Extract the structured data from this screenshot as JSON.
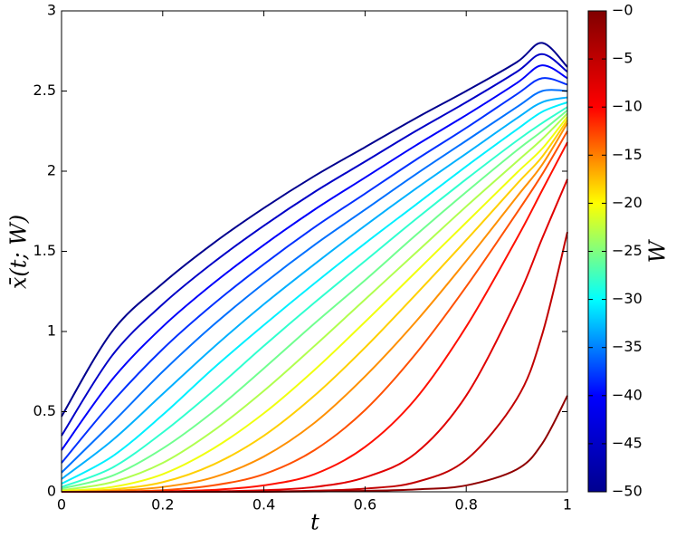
{
  "chart_data": {
    "type": "line",
    "x_label": "t",
    "y_label": "x̄(t; W)",
    "xlim": [
      0,
      1
    ],
    "ylim": [
      0,
      3
    ],
    "xticks": [
      0,
      0.2,
      0.4,
      0.6,
      0.8,
      1
    ],
    "yticks": [
      0,
      0.5,
      1,
      1.5,
      2,
      2.5,
      3
    ],
    "x": [
      0,
      0.1,
      0.2,
      0.3,
      0.4,
      0.5,
      0.6,
      0.7,
      0.8,
      0.9,
      0.95,
      1
    ],
    "series": [
      {
        "color": "#00008f",
        "values": [
          0.47,
          1.0,
          1.3,
          1.55,
          1.77,
          1.97,
          2.15,
          2.33,
          2.5,
          2.68,
          2.8,
          2.65
        ]
      },
      {
        "color": "#0000c7",
        "values": [
          0.35,
          0.85,
          1.17,
          1.43,
          1.66,
          1.87,
          2.06,
          2.25,
          2.43,
          2.62,
          2.73,
          2.62
        ]
      },
      {
        "color": "#0000fb",
        "values": [
          0.26,
          0.7,
          1.03,
          1.3,
          1.54,
          1.76,
          1.96,
          2.16,
          2.35,
          2.55,
          2.66,
          2.58
        ]
      },
      {
        "color": "#0030ff",
        "values": [
          0.18,
          0.56,
          0.89,
          1.17,
          1.42,
          1.65,
          1.86,
          2.07,
          2.27,
          2.48,
          2.58,
          2.54
        ]
      },
      {
        "color": "#0070ff",
        "values": [
          0.12,
          0.43,
          0.75,
          1.04,
          1.3,
          1.54,
          1.76,
          1.98,
          2.19,
          2.4,
          2.5,
          2.5
        ]
      },
      {
        "color": "#00b0ff",
        "values": [
          0.08,
          0.32,
          0.61,
          0.9,
          1.17,
          1.42,
          1.66,
          1.89,
          2.11,
          2.33,
          2.43,
          2.46
        ]
      },
      {
        "color": "#00f0ff",
        "values": [
          0.05,
          0.22,
          0.48,
          0.77,
          1.04,
          1.3,
          1.55,
          1.79,
          2.03,
          2.26,
          2.37,
          2.43
        ]
      },
      {
        "color": "#30ffcf",
        "values": [
          0.03,
          0.15,
          0.37,
          0.63,
          0.91,
          1.18,
          1.44,
          1.7,
          1.95,
          2.19,
          2.3,
          2.4
        ]
      },
      {
        "color": "#70ff8f",
        "values": [
          0.02,
          0.1,
          0.27,
          0.5,
          0.77,
          1.05,
          1.32,
          1.6,
          1.87,
          2.13,
          2.25,
          2.38
        ]
      },
      {
        "color": "#b0ff4f",
        "values": [
          0.01,
          0.06,
          0.18,
          0.38,
          0.63,
          0.91,
          1.2,
          1.49,
          1.78,
          2.06,
          2.2,
          2.36
        ]
      },
      {
        "color": "#f0ff0f",
        "values": [
          0.005,
          0.03,
          0.11,
          0.27,
          0.49,
          0.76,
          1.06,
          1.37,
          1.68,
          1.99,
          2.14,
          2.34
        ]
      },
      {
        "color": "#ffd000",
        "values": [
          0,
          0.015,
          0.06,
          0.17,
          0.35,
          0.6,
          0.9,
          1.23,
          1.57,
          1.92,
          2.09,
          2.32
        ]
      },
      {
        "color": "#ff9000",
        "values": [
          0,
          0.006,
          0.03,
          0.09,
          0.22,
          0.43,
          0.72,
          1.06,
          1.44,
          1.84,
          2.04,
          2.3
        ]
      },
      {
        "color": "#ff5000",
        "values": [
          0,
          0.002,
          0.01,
          0.04,
          0.11,
          0.26,
          0.51,
          0.86,
          1.28,
          1.74,
          1.98,
          2.25
        ]
      },
      {
        "color": "#ff1000",
        "values": [
          0,
          0,
          0.003,
          0.012,
          0.04,
          0.11,
          0.28,
          0.58,
          1.03,
          1.58,
          1.88,
          2.18
        ]
      },
      {
        "color": "#e00000",
        "values": [
          0,
          0,
          0,
          0.003,
          0.01,
          0.03,
          0.09,
          0.24,
          0.6,
          1.2,
          1.58,
          1.95
        ]
      },
      {
        "color": "#c00000",
        "values": [
          0,
          0,
          0,
          0,
          0.002,
          0.007,
          0.02,
          0.06,
          0.2,
          0.58,
          0.98,
          1.62
        ]
      },
      {
        "color": "#900000",
        "values": [
          0,
          0,
          0,
          0,
          0,
          0.002,
          0.006,
          0.015,
          0.04,
          0.14,
          0.3,
          0.6
        ]
      }
    ],
    "colorbar": {
      "label": "W",
      "lim": [
        -50,
        0
      ],
      "colormap": [
        "#00008f",
        "#0000ff",
        "#00ffff",
        "#ffff00",
        "#ff0000",
        "#800000"
      ],
      "ticks": [
        {
          "value": -50,
          "label": "−50"
        },
        {
          "value": -45,
          "label": "−45"
        },
        {
          "value": -40,
          "label": "−40"
        },
        {
          "value": -35,
          "label": "−35"
        },
        {
          "value": -30,
          "label": "−30"
        },
        {
          "value": -25,
          "label": "−25"
        },
        {
          "value": -20,
          "label": "−20"
        },
        {
          "value": -15,
          "label": "−15"
        },
        {
          "value": -10,
          "label": "−10"
        },
        {
          "value": -5,
          "label": "−5"
        },
        {
          "value": 0,
          "label": "−0"
        }
      ]
    }
  }
}
